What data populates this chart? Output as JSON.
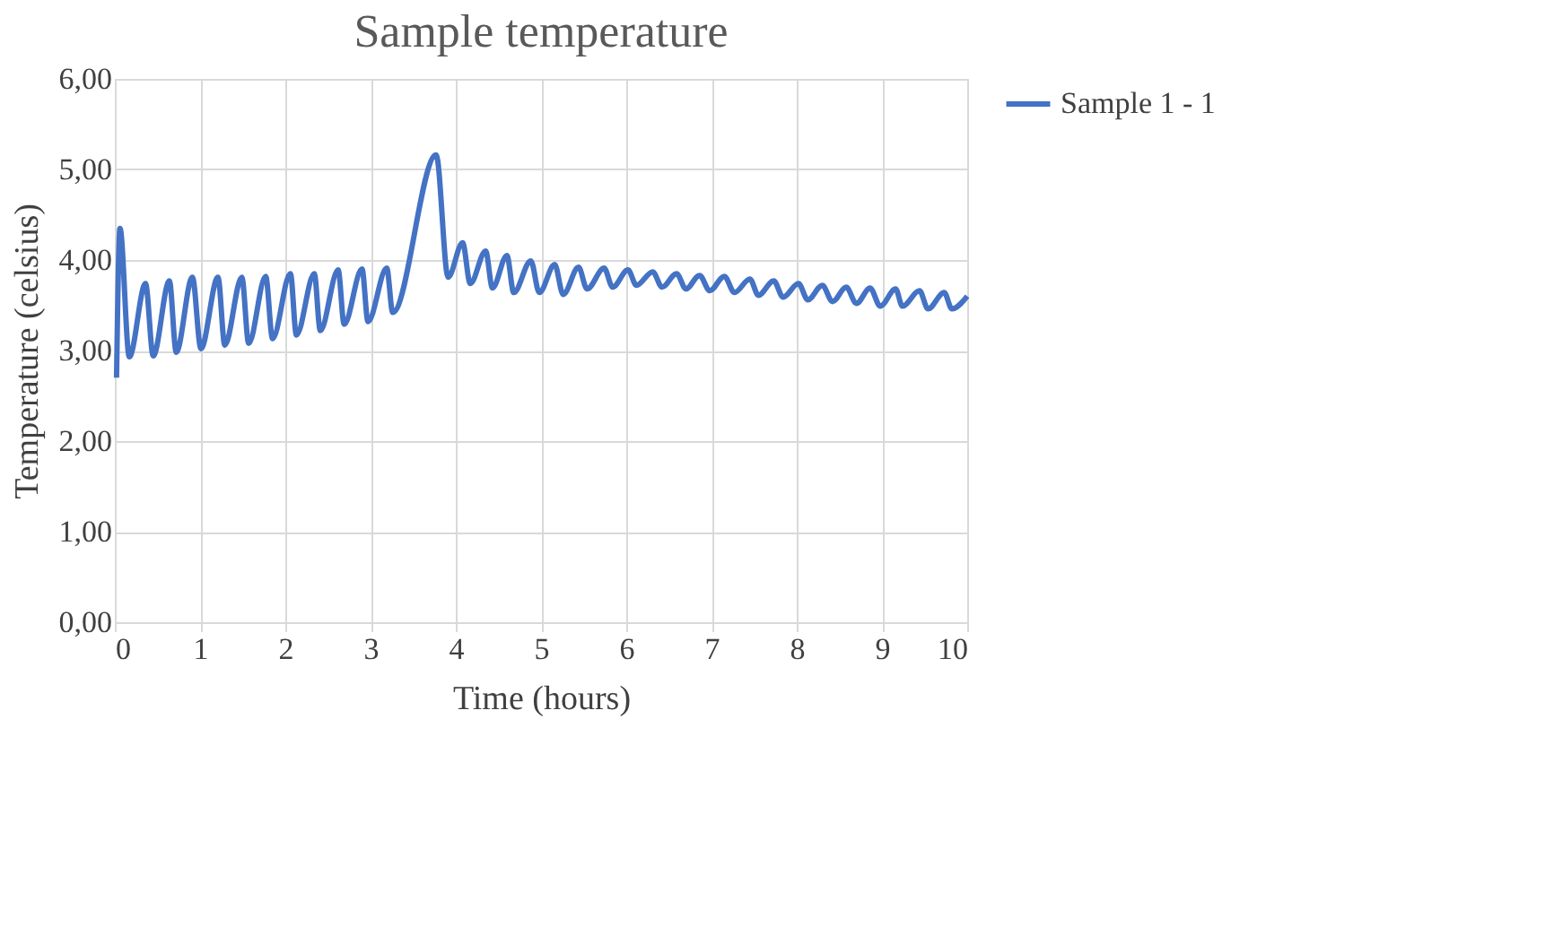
{
  "chart_data": {
    "type": "line",
    "title": "Sample temperature",
    "xlabel": "Time (hours)",
    "ylabel": "Temperature (celsius)",
    "xlim": [
      0,
      10
    ],
    "xticks": [
      0,
      1,
      2,
      3,
      4,
      5,
      6,
      7,
      8,
      9,
      10
    ],
    "ylim": [
      0,
      6
    ],
    "yticks": [
      {
        "value": 0,
        "label": "0,00"
      },
      {
        "value": 1,
        "label": "1,00"
      },
      {
        "value": 2,
        "label": "2,00"
      },
      {
        "value": 3,
        "label": "3,00"
      },
      {
        "value": 4,
        "label": "4,00"
      },
      {
        "value": 5,
        "label": "5,00"
      },
      {
        "value": 6,
        "label": "6,00"
      }
    ],
    "grid": true,
    "legend": "right",
    "marker": "none",
    "line_style": "solid",
    "series": [
      {
        "name": "Sample 1 - 1",
        "color": "#4472c4",
        "x": [
          0.02,
          0.06,
          0.17,
          0.36,
          0.45,
          0.64,
          0.72,
          0.91,
          1.01,
          1.21,
          1.29,
          1.49,
          1.57,
          1.77,
          1.85,
          2.06,
          2.13,
          2.34,
          2.41,
          2.62,
          2.69,
          2.9,
          2.97,
          3.19,
          3.26,
          3.77,
          3.91,
          4.08,
          4.17,
          4.35,
          4.43,
          4.6,
          4.68,
          4.88,
          4.98,
          5.16,
          5.26,
          5.44,
          5.54,
          5.74,
          5.84,
          6.02,
          6.12,
          6.31,
          6.42,
          6.59,
          6.7,
          6.86,
          6.98,
          7.15,
          7.27,
          7.45,
          7.55,
          7.73,
          7.84,
          8.02,
          8.13,
          8.3,
          8.42,
          8.58,
          8.7,
          8.86,
          8.98,
          9.16,
          9.24,
          9.44,
          9.54,
          9.73,
          9.82,
          10.0
        ],
        "values": [
          2.7,
          4.35,
          2.93,
          3.74,
          2.94,
          3.77,
          2.98,
          3.81,
          3.02,
          3.81,
          3.06,
          3.81,
          3.08,
          3.82,
          3.13,
          3.85,
          3.17,
          3.85,
          3.22,
          3.89,
          3.29,
          3.9,
          3.32,
          3.91,
          3.42,
          5.16,
          3.81,
          4.19,
          3.74,
          4.1,
          3.69,
          4.05,
          3.64,
          3.99,
          3.64,
          3.95,
          3.62,
          3.92,
          3.68,
          3.91,
          3.7,
          3.89,
          3.72,
          3.87,
          3.7,
          3.85,
          3.68,
          3.83,
          3.66,
          3.82,
          3.64,
          3.79,
          3.61,
          3.77,
          3.59,
          3.74,
          3.56,
          3.72,
          3.54,
          3.7,
          3.52,
          3.69,
          3.49,
          3.68,
          3.49,
          3.66,
          3.46,
          3.64,
          3.46,
          3.6
        ]
      }
    ]
  }
}
